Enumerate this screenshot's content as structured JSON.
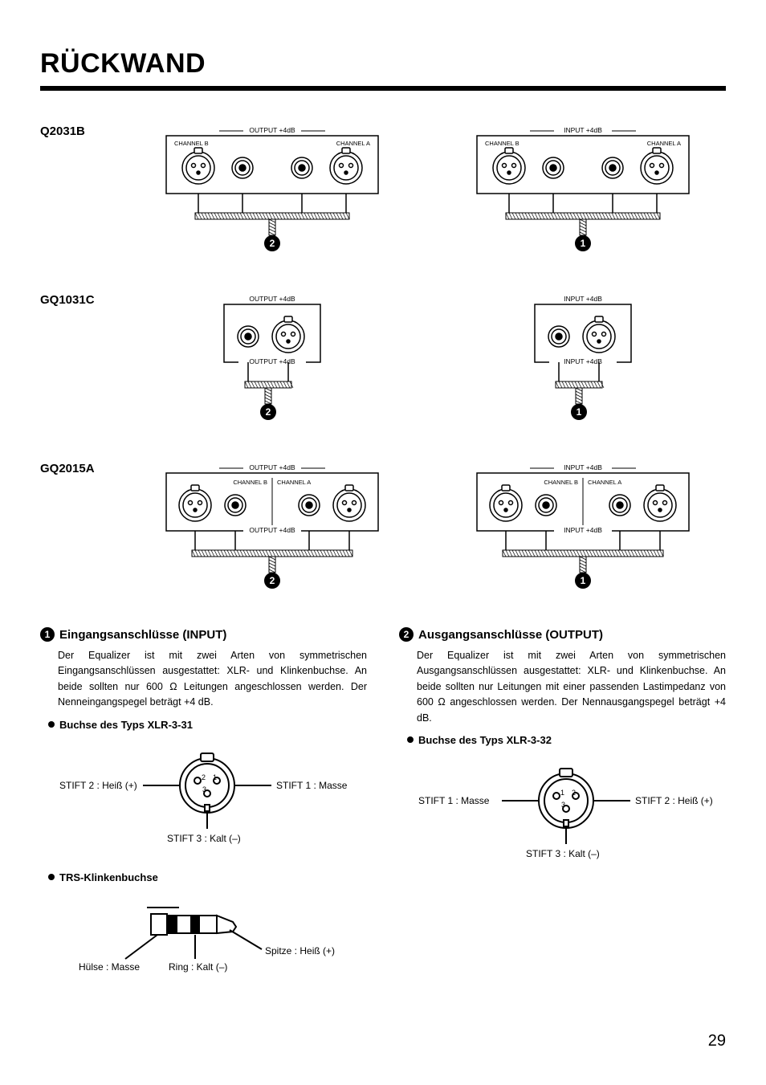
{
  "title": "RÜCKWAND",
  "page_number": "29",
  "models": [
    {
      "name": "Q2031B",
      "panels": [
        {
          "banner": "OUTPUT +4dB",
          "left_label": "CHANNEL B",
          "right_label": "CHANNEL A",
          "badge": "2",
          "xlr_pos": "outer"
        },
        {
          "banner": "INPUT +4dB",
          "left_label": "CHANNEL B",
          "right_label": "CHANNEL A",
          "badge": "1",
          "xlr_pos": "outer"
        }
      ]
    },
    {
      "name": "GQ1031C",
      "panels": [
        {
          "banner": "OUTPUT +4dB",
          "badge": "2",
          "single": true
        },
        {
          "banner": "INPUT +4dB",
          "badge": "1",
          "single": true
        }
      ]
    },
    {
      "name": "GQ2015A",
      "panels": [
        {
          "banner": "OUTPUT +4dB",
          "left_label": "CHANNEL B",
          "right_label": "CHANNEL A",
          "badge": "2",
          "xlr_pos": "outer-compact"
        },
        {
          "banner": "INPUT +4dB",
          "left_label": "CHANNEL B",
          "right_label": "CHANNEL A",
          "badge": "1",
          "xlr_pos": "outer-compact"
        }
      ]
    }
  ],
  "sections": {
    "input": {
      "badge": "1",
      "title": "Eingangsanschlüsse (INPUT)",
      "body": "Der Equalizer ist mit zwei Arten von symmetrischen Eingangsanschlüssen ausgestattet: XLR- und Klinkenbuchse. An beide sollten nur 600 Ω Leitungen angeschlossen werden. Der Nenneingangspegel beträgt +4 dB.",
      "xlr_head": "Buchse des Typs XLR-3-31",
      "xlr_pins": {
        "left": "STIFT 2 : Heiß (+)",
        "right": "STIFT 1 : Masse",
        "bottom": "STIFT 3 : Kalt (–)",
        "pin_top_left": "2",
        "pin_top_right": "1",
        "pin_bottom": "3"
      },
      "trs_head": "TRS-Klinkenbuchse",
      "trs": {
        "sleeve": "Hülse : Masse",
        "ring": "Ring : Kalt (–)",
        "tip": "Spitze : Heiß (+)"
      }
    },
    "output": {
      "badge": "2",
      "title": "Ausgangsanschlüsse (OUTPUT)",
      "body": "Der Equalizer ist mit zwei Arten von symmetrischen Ausgangsanschlüssen ausgestattet: XLR- und Klinkenbuchse. An beide sollten nur Leitungen mit einer passenden Lastimpedanz von 600 Ω angeschlossen werden. Der Nennausgangspegel beträgt +4 dB.",
      "xlr_head": "Buchse des Typs XLR-3-32",
      "xlr_pins": {
        "left": "STIFT 1 : Masse",
        "right": "STIFT 2 : Heiß (+)",
        "bottom": "STIFT 3 : Kalt (–)",
        "pin_top_left": "1",
        "pin_top_right": "2",
        "pin_bottom": "3"
      }
    }
  },
  "style": {
    "panel_border": "#000000",
    "hatch_stroke": "#000000",
    "text_color": "#000000"
  }
}
